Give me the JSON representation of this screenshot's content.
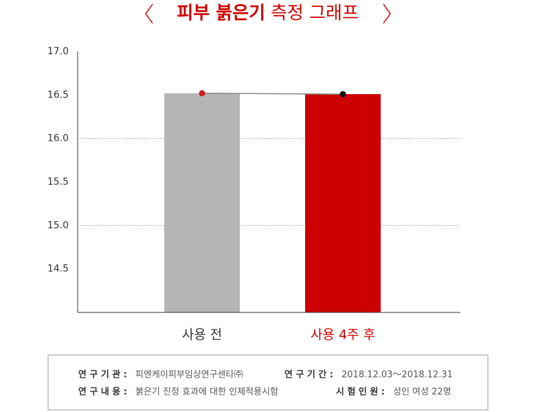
{
  "chart_data": {
    "type": "bar",
    "title": {
      "bold": "피부 붉은기",
      "regular": "측정 그래프"
    },
    "title_color": "#cc0000",
    "categories": [
      "사용 전",
      "사용 4주 후"
    ],
    "values": [
      16.52,
      16.51
    ],
    "colors": [
      "#b5b5b5",
      "#cc0000"
    ],
    "label_colors": [
      "#333333",
      "#cc0000"
    ],
    "marker_colors": [
      "#cc2222",
      "#111111"
    ],
    "line_color": "#888888",
    "ylim": [
      14.0,
      17.0
    ],
    "yticks": [
      {
        "value": 17,
        "label": "17.0"
      },
      16.5,
      {
        "value": 16,
        "label": "16.0"
      },
      15.5,
      {
        "value": 15,
        "label": "15.0"
      },
      14.5
    ],
    "grid": true
  },
  "info": [
    {
      "label": "연 구 기 관 :",
      "value": "피엔케이피부임상연구센타㈜"
    },
    {
      "label": "연 구 기 간 :",
      "value": "2018.12.03～2018.12.31"
    },
    {
      "label": "연 구 내 용 :",
      "value": "붉은기 진정 효과에 대한 인체적용시험"
    },
    {
      "label": "시 험 인 원 :",
      "value": "성인 여성 22명"
    }
  ]
}
